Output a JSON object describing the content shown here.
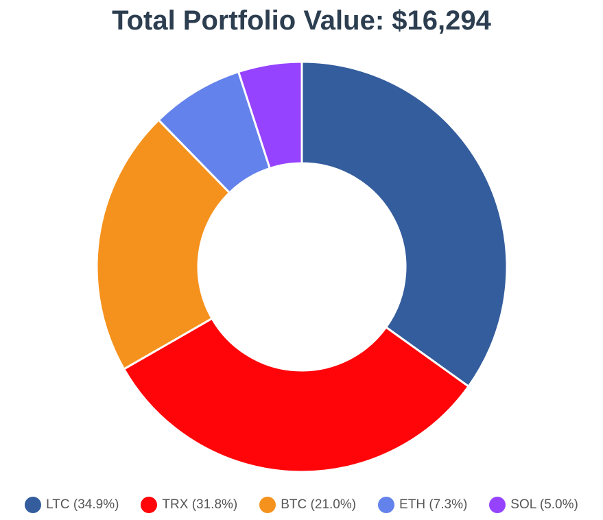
{
  "chart_data": {
    "type": "pie",
    "subtype": "donut",
    "title": "Total Portfolio Value: $16,294",
    "series": [
      {
        "name": "",
        "slices": [
          {
            "label": "LTC",
            "percent": 34.9,
            "legend_text": "LTC (34.9%)",
            "color": "#345d9d"
          },
          {
            "label": "TRX",
            "percent": 31.8,
            "legend_text": "TRX (31.8%)",
            "color": "#ff0509"
          },
          {
            "label": "BTC",
            "percent": 21.0,
            "legend_text": "BTC (21.0%)",
            "color": "#f5921d"
          },
          {
            "label": "ETH",
            "percent": 7.3,
            "legend_text": "ETH (7.3%)",
            "color": "#6482eb"
          },
          {
            "label": "SOL",
            "percent": 5.0,
            "legend_text": "SOL (5.0%)",
            "color": "#9643ff"
          }
        ]
      }
    ],
    "legend_position": "bottom",
    "start_angle": "top, clockwise"
  },
  "colors": {
    "title": "#2c3e50",
    "legend_text": "#555555",
    "slice_border": "#ffffff"
  }
}
